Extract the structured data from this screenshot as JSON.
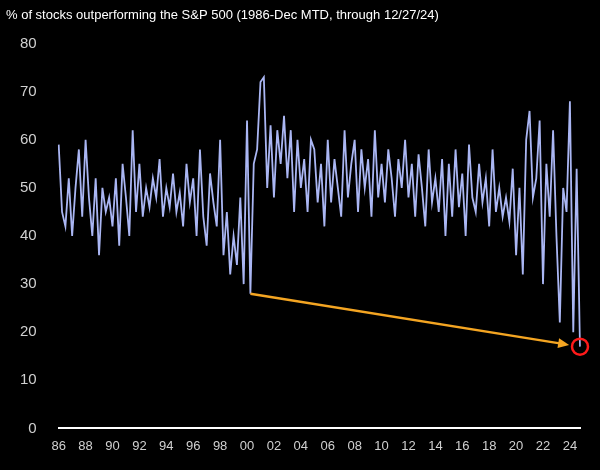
{
  "chart_data": {
    "type": "line",
    "title": "% of stocks outperforming the S&P 500 (1986-Dec MTD, through 12/27/24)",
    "categories": [
      "86",
      null,
      null,
      null,
      null,
      null,
      null,
      null,
      "88",
      null,
      null,
      null,
      null,
      null,
      null,
      null,
      "90",
      null,
      null,
      null,
      null,
      null,
      null,
      null,
      "92",
      null,
      null,
      null,
      null,
      null,
      null,
      null,
      "94",
      null,
      null,
      null,
      null,
      null,
      null,
      null,
      "96",
      null,
      null,
      null,
      null,
      null,
      null,
      null,
      "98",
      null,
      null,
      null,
      null,
      null,
      null,
      null,
      "00",
      null,
      null,
      null,
      null,
      null,
      null,
      null,
      "02",
      null,
      null,
      null,
      null,
      null,
      null,
      null,
      "04",
      null,
      null,
      null,
      null,
      null,
      null,
      null,
      "06",
      null,
      null,
      null,
      null,
      null,
      null,
      null,
      "08",
      null,
      null,
      null,
      null,
      null,
      null,
      null,
      "10",
      null,
      null,
      null,
      null,
      null,
      null,
      null,
      "12",
      null,
      null,
      null,
      null,
      null,
      null,
      null,
      "14",
      null,
      null,
      null,
      null,
      null,
      null,
      null,
      "16",
      null,
      null,
      null,
      null,
      null,
      null,
      null,
      "18",
      null,
      null,
      null,
      null,
      null,
      null,
      null,
      "20",
      null,
      null,
      null,
      null,
      null,
      null,
      null,
      "22",
      null,
      null,
      null,
      null,
      null,
      null,
      null,
      "24",
      null,
      null,
      null
    ],
    "values": [
      59,
      45,
      42,
      52,
      40,
      50,
      58,
      44,
      60,
      48,
      40,
      52,
      36,
      50,
      45,
      48,
      42,
      52,
      38,
      55,
      48,
      40,
      62,
      45,
      55,
      44,
      50,
      46,
      52,
      48,
      56,
      44,
      50,
      46,
      53,
      45,
      49,
      42,
      55,
      47,
      52,
      40,
      58,
      44,
      38,
      53,
      47,
      42,
      60,
      36,
      45,
      32,
      40,
      34,
      48,
      30,
      64,
      28,
      55,
      58,
      72,
      73,
      50,
      63,
      48,
      62,
      55,
      65,
      52,
      62,
      45,
      60,
      50,
      56,
      45,
      60,
      58,
      47,
      55,
      42,
      60,
      47,
      56,
      50,
      44,
      62,
      48,
      55,
      60,
      45,
      58,
      50,
      56,
      44,
      62,
      48,
      55,
      47,
      58,
      52,
      44,
      56,
      50,
      60,
      48,
      55,
      44,
      57,
      50,
      42,
      58,
      47,
      52,
      45,
      56,
      40,
      55,
      44,
      58,
      46,
      53,
      40,
      59,
      48,
      45,
      55,
      47,
      52,
      42,
      58,
      45,
      50,
      44,
      48,
      43,
      54,
      36,
      50,
      32,
      60,
      66,
      48,
      52,
      64,
      30,
      55,
      44,
      62,
      40,
      22,
      50,
      45,
      68,
      20,
      54,
      17
    ],
    "color": "#aab6f3",
    "ylim": [
      0,
      80
    ],
    "yticks": [
      0,
      10,
      20,
      30,
      40,
      50,
      60,
      70,
      80
    ],
    "grid": false
  }
}
